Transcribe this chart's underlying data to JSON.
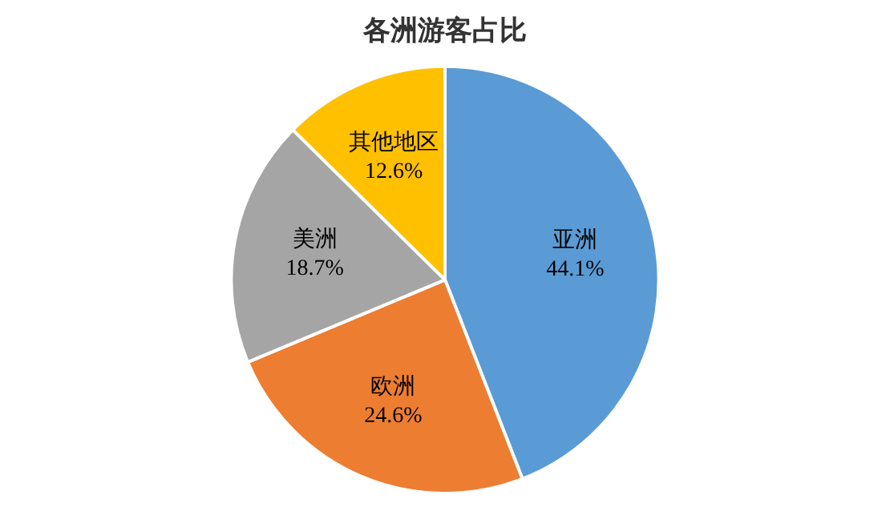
{
  "chart_data": {
    "type": "pie",
    "title": "各洲游客占比",
    "categories": [
      "亚洲",
      "欧洲",
      "美洲",
      "其他地区"
    ],
    "values": [
      44.1,
      24.6,
      18.7,
      12.6
    ],
    "colors": [
      "#5b9bd5",
      "#ed7d31",
      "#a5a5a5",
      "#ffc000"
    ],
    "value_labels": [
      "44.1%",
      "24.6%",
      "18.7%",
      "12.6%"
    ],
    "legend": false
  }
}
